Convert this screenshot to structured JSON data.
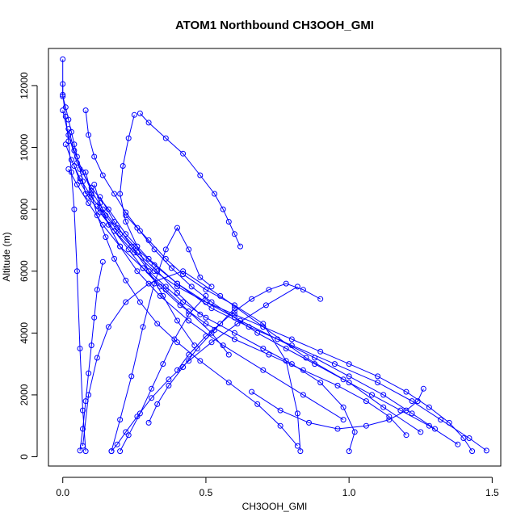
{
  "chart_data": {
    "type": "scatter",
    "title": "ATOM1 Northbound CH3OOH_GMI",
    "xlabel": "CH3OOH_GMI",
    "ylabel": "Altitude (m)",
    "xlim": [
      -0.05,
      1.53
    ],
    "ylim": [
      -300,
      13200
    ],
    "x_ticks": [
      0.0,
      0.5,
      1.0,
      1.5
    ],
    "x_tick_labels": [
      "0.0",
      "0.5",
      "1.0",
      "1.5"
    ],
    "y_ticks": [
      0,
      2000,
      4000,
      6000,
      8000,
      10000,
      12000
    ],
    "y_tick_labels": [
      "0",
      "2000",
      "4000",
      "6000",
      "8000",
      "10000",
      "12000"
    ],
    "grid": false,
    "colors": {
      "series": "#0000ff",
      "axis": "#000000"
    },
    "series": [
      {
        "x": [
          0.08,
          0.07,
          0.06,
          0.05,
          0.04,
          0.03,
          0.02,
          0.01,
          0.0,
          0.0
        ],
        "y": [
          180,
          1500,
          3500,
          6000,
          8000,
          9200,
          10200,
          11000,
          11700,
          12850
        ]
      },
      {
        "x": [
          0.07,
          0.09,
          0.12,
          0.16,
          0.22,
          0.3,
          0.42,
          0.55,
          0.7,
          0.85,
          1.0,
          1.12,
          1.25
        ],
        "y": [
          350,
          2000,
          3200,
          4200,
          5000,
          5600,
          6000,
          5200,
          4200,
          3200,
          2400,
          1600,
          800
        ]
      },
      {
        "x": [
          0.0,
          0.02,
          0.05,
          0.1,
          0.16,
          0.22,
          0.3,
          0.4,
          0.52,
          0.65,
          0.8,
          0.95,
          1.1,
          1.22,
          1.32,
          1.42,
          1.48
        ],
        "y": [
          11200,
          10400,
          9500,
          8700,
          8000,
          7200,
          6400,
          5600,
          4800,
          4200,
          3600,
          3000,
          2400,
          1800,
          1200,
          600,
          200
        ]
      },
      {
        "x": [
          0.27,
          0.3,
          0.36,
          0.42,
          0.48,
          0.53,
          0.56,
          0.58,
          0.6,
          0.62
        ],
        "y": [
          11100,
          10800,
          10300,
          9800,
          9100,
          8500,
          8000,
          7600,
          7200,
          6800
        ]
      },
      {
        "x": [
          0.17,
          0.2,
          0.24,
          0.28,
          0.32,
          0.36,
          0.4,
          0.44,
          0.48,
          0.52
        ],
        "y": [
          180,
          1200,
          2600,
          4200,
          5600,
          6700,
          7400,
          6700,
          5800,
          5500
        ]
      },
      {
        "x": [
          0.83,
          0.82,
          0.78,
          0.7,
          0.6,
          0.5,
          0.42,
          0.36,
          0.3,
          0.26,
          0.22
        ],
        "y": [
          180,
          1400,
          3100,
          4300,
          4900,
          5400,
          5900,
          6400,
          7000,
          7400,
          7800
        ]
      },
      {
        "x": [
          1.0,
          1.02,
          0.98,
          0.9,
          0.8,
          0.7,
          0.6,
          0.5,
          0.42,
          0.36,
          0.3,
          0.24,
          0.18,
          0.13
        ],
        "y": [
          180,
          800,
          1600,
          2400,
          3000,
          3500,
          4000,
          4500,
          5000,
          5500,
          6000,
          6800,
          7600,
          8400
        ]
      },
      {
        "x": [
          0.08,
          0.09,
          0.11,
          0.14,
          0.18,
          0.22,
          0.27,
          0.32,
          0.38,
          0.45,
          0.52,
          0.6,
          0.68,
          0.78,
          0.88,
          0.98,
          1.08,
          1.18,
          1.28,
          1.38
        ],
        "y": [
          11200,
          10400,
          9700,
          9100,
          8500,
          7900,
          7300,
          6700,
          6100,
          5500,
          5000,
          4500,
          4000,
          3500,
          3000,
          2500,
          2000,
          1500,
          1000,
          400
        ]
      },
      {
        "x": [
          0.02,
          0.04,
          0.07,
          0.1,
          0.14,
          0.19,
          0.25,
          0.32,
          0.4,
          0.5,
          0.62,
          0.75,
          0.88,
          1.0,
          1.12,
          1.22,
          1.3
        ],
        "y": [
          10600,
          9900,
          9200,
          8600,
          8000,
          7400,
          6800,
          6200,
          5600,
          5000,
          4400,
          3800,
          3200,
          2600,
          2000,
          1400,
          900
        ]
      },
      {
        "x": [
          0.25,
          0.23,
          0.21,
          0.2,
          0.22,
          0.26,
          0.3,
          0.35,
          0.4,
          0.46
        ],
        "y": [
          11050,
          10300,
          9400,
          8500,
          7600,
          6800,
          6000,
          5200,
          4400,
          3600
        ]
      },
      {
        "x": [
          0.04,
          0.06,
          0.09,
          0.13,
          0.18,
          0.23,
          0.28,
          0.34,
          0.41,
          0.5,
          0.6,
          0.72,
          0.84,
          0.96,
          1.06,
          1.14,
          1.2
        ],
        "y": [
          9400,
          8900,
          8400,
          7900,
          7300,
          6700,
          6100,
          5500,
          4900,
          4300,
          3800,
          3300,
          2800,
          2300,
          1800,
          1300,
          700
        ]
      },
      {
        "x": [
          1.43,
          1.4,
          1.35,
          1.28,
          1.2,
          1.1,
          1.0,
          0.9,
          0.8,
          0.7,
          0.6,
          0.5,
          0.4,
          0.32,
          0.25,
          0.18,
          0.12
        ],
        "y": [
          180,
          600,
          1100,
          1600,
          2100,
          2600,
          3000,
          3400,
          3800,
          4200,
          4600,
          5000,
          5500,
          6000,
          6600,
          7300,
          8100
        ]
      },
      {
        "x": [
          0.11,
          0.13,
          0.16,
          0.2,
          0.26,
          0.34,
          0.44,
          0.56,
          0.7,
          0.84,
          0.98
        ],
        "y": [
          8800,
          8200,
          7500,
          6800,
          6000,
          5200,
          4400,
          3600,
          2800,
          2000,
          1200
        ]
      },
      {
        "x": [
          0.2,
          0.23,
          0.27,
          0.31,
          0.35,
          0.39,
          0.44,
          0.5
        ],
        "y": [
          180,
          700,
          1400,
          2200,
          3000,
          3800,
          4600,
          5200
        ]
      },
      {
        "x": [
          0.06,
          0.07,
          0.08,
          0.09,
          0.1,
          0.11,
          0.12,
          0.14
        ],
        "y": [
          200,
          900,
          1800,
          2700,
          3600,
          4500,
          5400,
          6300
        ]
      },
      {
        "x": [
          0.01,
          0.03,
          0.06,
          0.1,
          0.15,
          0.2,
          0.26,
          0.33,
          0.4,
          0.48
        ],
        "y": [
          10100,
          9600,
          9000,
          8400,
          7800,
          7200,
          6600,
          6000,
          5300,
          4600
        ]
      },
      {
        "x": [
          0.3,
          0.33,
          0.37,
          0.42,
          0.47,
          0.53,
          0.6
        ],
        "y": [
          1100,
          1700,
          2300,
          2900,
          3500,
          4100,
          4800
        ]
      },
      {
        "x": [
          0.02,
          0.05,
          0.09,
          0.14,
          0.2,
          0.28,
          0.36,
          0.44,
          0.52,
          0.58
        ],
        "y": [
          9300,
          8800,
          8200,
          7500,
          6800,
          6100,
          5400,
          4700,
          4000,
          3300
        ]
      },
      {
        "x": [
          0.17,
          0.19,
          0.22,
          0.26,
          0.31,
          0.37,
          0.44,
          0.52,
          0.61,
          0.71,
          0.82
        ],
        "y": [
          180,
          400,
          800,
          1300,
          1900,
          2500,
          3100,
          3700,
          4300,
          4900,
          5500
        ]
      },
      {
        "x": [
          0.82,
          0.76,
          0.68,
          0.58,
          0.48,
          0.4,
          0.33,
          0.27,
          0.22,
          0.18,
          0.15,
          0.12,
          0.1,
          0.08
        ],
        "y": [
          350,
          1000,
          1700,
          2400,
          3100,
          3700,
          4300,
          5000,
          5700,
          6400,
          7100,
          7800,
          8500,
          9200
        ]
      },
      {
        "x": [
          1.26,
          1.24,
          1.2,
          1.14,
          1.06,
          0.96,
          0.86,
          0.76,
          0.66
        ],
        "y": [
          2200,
          1800,
          1500,
          1200,
          1000,
          900,
          1100,
          1500,
          2100
        ]
      },
      {
        "x": [
          0.4,
          0.44,
          0.5,
          0.55,
          0.6,
          0.66,
          0.72,
          0.78,
          0.84,
          0.9
        ],
        "y": [
          2800,
          3300,
          3900,
          4300,
          4700,
          5100,
          5400,
          5600,
          5400,
          5100
        ]
      },
      {
        "x": [
          0.0,
          0.0,
          0.01,
          0.02,
          0.03,
          0.04,
          0.05,
          0.06,
          0.07,
          0.08
        ],
        "y": [
          12050,
          11650,
          11300,
          10900,
          10500,
          10100,
          9700,
          9300,
          8900,
          8500
        ]
      }
    ]
  }
}
